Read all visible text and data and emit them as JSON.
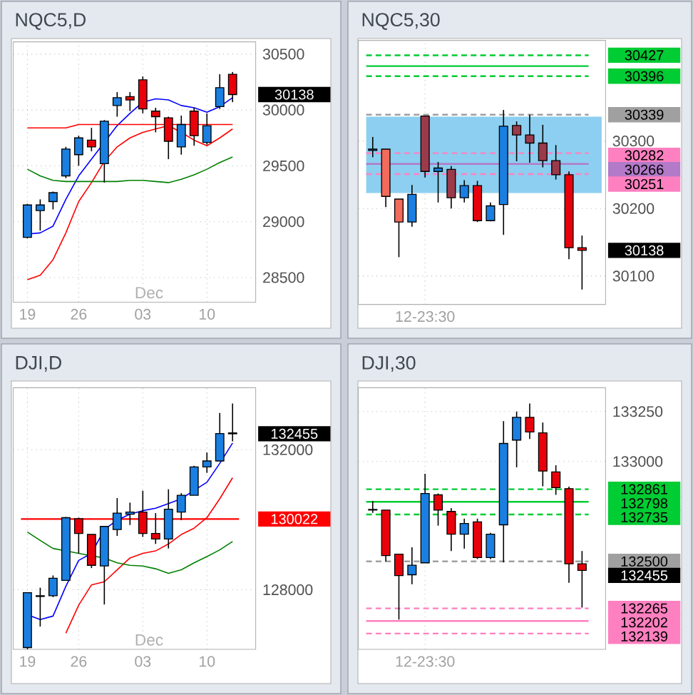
{
  "chart_data": [
    {
      "type": "candlestick",
      "title": "NQC5,D",
      "categories": [
        "19",
        null,
        null,
        null,
        "26",
        null,
        null,
        null,
        null,
        "03",
        null,
        null,
        null,
        null,
        "10",
        null,
        null
      ],
      "ohlc": [
        [
          28860,
          29160,
          28850,
          29150
        ],
        [
          29100,
          29200,
          28920,
          29150
        ],
        [
          29180,
          29270,
          29110,
          29260
        ],
        [
          29410,
          29670,
          29390,
          29650
        ],
        [
          29600,
          29770,
          29500,
          29750
        ],
        [
          29730,
          29840,
          29630,
          29670
        ],
        [
          29520,
          29910,
          29350,
          29900
        ],
        [
          30040,
          30160,
          29940,
          30110
        ],
        [
          30120,
          30160,
          29990,
          30090
        ],
        [
          30270,
          30300,
          29970,
          30010
        ],
        [
          29990,
          30020,
          29800,
          29940
        ],
        [
          29930,
          29940,
          29560,
          29720
        ],
        [
          29670,
          29950,
          29600,
          29870
        ],
        [
          29990,
          30020,
          29680,
          29770
        ],
        [
          29710,
          29970,
          29690,
          29860
        ],
        [
          30030,
          30320,
          30010,
          30200
        ],
        [
          30320,
          30340,
          30070,
          30138
        ]
      ],
      "colors": [
        "#1a7fe0",
        "#1a7fe0",
        "#1a7fe0",
        "#1a7fe0",
        "#1a7fe0",
        "#e8000b",
        "#1a7fe0",
        "#1a7fe0",
        "#e8000b",
        "#e8000b",
        "#e8000b",
        "#e8000b",
        "#1a7fe0",
        "#e8000b",
        "#1a7fe0",
        "#1a7fe0",
        "#e8000b"
      ],
      "series": [
        {
          "type": "line",
          "color": "#0000ff",
          "values": [
            28890,
            28900,
            28960,
            29200,
            29410,
            29560,
            29710,
            29860,
            29970,
            30070,
            30100,
            30090,
            30040,
            30020,
            29980,
            30030,
            30110
          ]
        },
        {
          "type": "line",
          "color": "#ff0000",
          "values": [
            28480,
            28520,
            28660,
            28900,
            29180,
            29350,
            29540,
            29670,
            29750,
            29800,
            29830,
            29860,
            29800,
            29730,
            29680,
            29750,
            29830
          ]
        },
        {
          "type": "line",
          "color": "#ff0000",
          "values": [
            29840,
            29840,
            29840,
            29840,
            29870,
            29870,
            29870,
            29870,
            29870,
            29870,
            29870,
            29870,
            29870,
            29870,
            29870,
            29870,
            29870
          ]
        },
        {
          "type": "line",
          "color": "#008000",
          "values": [
            29470,
            29410,
            29370,
            29360,
            29360,
            29360,
            29360,
            29360,
            29370,
            29370,
            29360,
            29350,
            29380,
            29420,
            29470,
            29530,
            29580
          ]
        }
      ],
      "ylim": [
        28280,
        30610
      ],
      "yticks": [
        28500,
        29000,
        29500,
        30000,
        30500
      ],
      "grid": true,
      "annotations": [
        "Dec",
        "30138"
      ]
    },
    {
      "type": "candlestick",
      "title": "NQC5,30",
      "categories": [
        null,
        null,
        null,
        null,
        "12-23:30",
        null,
        null,
        null,
        null,
        null,
        null,
        null,
        null,
        null,
        null,
        null,
        null
      ],
      "ohlc": [
        [
          30286,
          30306,
          30276,
          30288
        ],
        [
          30288,
          30288,
          30202,
          30218
        ],
        [
          30214,
          30214,
          30128,
          30180
        ],
        [
          30180,
          30235,
          30173,
          30221
        ],
        [
          30337,
          30337,
          30246,
          30255
        ],
        [
          30255,
          30269,
          30209,
          30260
        ],
        [
          30258,
          30263,
          30200,
          30216
        ],
        [
          30216,
          30242,
          30209,
          30234
        ],
        [
          30234,
          30241,
          30180,
          30182
        ],
        [
          30182,
          30209,
          30181,
          30204
        ],
        [
          30206,
          30346,
          30161,
          30322
        ],
        [
          30323,
          30329,
          30270,
          30309
        ],
        [
          30309,
          30339,
          30268,
          30297
        ],
        [
          30297,
          30324,
          30261,
          30271
        ],
        [
          30271,
          30294,
          30243,
          30250
        ],
        [
          30250,
          30255,
          30125,
          30142
        ],
        [
          30142,
          30160,
          30080,
          30138
        ]
      ],
      "colors": [
        "#1a7fe0",
        "#f26b5b",
        "#f26b5b",
        "#1a7fe0",
        "#9b3a4a",
        "#1a7fe0",
        "#9b3a4a",
        "#1a7fe0",
        "#e8000b",
        "#1a7fe0",
        "#1a7fe0",
        "#9b3a4a",
        "#9b3a4a",
        "#9b3a4a",
        "#9b3a4a",
        "#e8000b",
        "#e8000b"
      ],
      "ylim": [
        30058,
        30449
      ],
      "yticks": [
        30100,
        30200,
        30300
      ],
      "grid": true,
      "bands": [
        {
          "axis": "y",
          "from": 30223,
          "to": 30336,
          "color": "#8ccff0"
        }
      ],
      "ref_lines": [
        {
          "axis": "y",
          "value": 30427,
          "label": "30427",
          "color": "#00cc33",
          "line_style": "dashed"
        },
        {
          "axis": "y",
          "value": 30411,
          "label": null,
          "color": "#00cc33",
          "line_style": "solid"
        },
        {
          "axis": "y",
          "value": 30396,
          "label": "30396",
          "color": "#00cc33",
          "line_style": "dashed"
        },
        {
          "axis": "y",
          "value": 30339,
          "label": "30339",
          "color": "#a0a0a0",
          "line_style": "dashed"
        },
        {
          "axis": "y",
          "value": 30282,
          "label": "30282",
          "color": "#ff80c0",
          "line_style": "dashed"
        },
        {
          "axis": "y",
          "value": 30266,
          "label": "30266",
          "color": "#b27ac8",
          "line_style": "solid"
        },
        {
          "axis": "y",
          "value": 30251,
          "label": "30251",
          "color": "#ff80c0",
          "line_style": "dashed"
        }
      ],
      "annotations": [
        "30138"
      ]
    },
    {
      "type": "candlestick",
      "title": "DJI,D",
      "categories": [
        "19",
        null,
        null,
        null,
        "26",
        null,
        null,
        null,
        null,
        "03",
        null,
        null,
        null,
        null,
        "10",
        null,
        null
      ],
      "ohlc": [
        [
          126350,
          127920,
          126300,
          127920
        ],
        [
          127830,
          128060,
          126950,
          127810
        ],
        [
          127830,
          128410,
          127790,
          128330
        ],
        [
          128270,
          130080,
          128270,
          130060
        ],
        [
          130030,
          130060,
          129040,
          129610
        ],
        [
          129580,
          129580,
          128620,
          128700
        ],
        [
          128680,
          129810,
          127580,
          129810
        ],
        [
          129720,
          130620,
          129540,
          130190
        ],
        [
          130160,
          130490,
          129850,
          130220
        ],
        [
          130220,
          130830,
          129510,
          129610
        ],
        [
          129610,
          130190,
          129310,
          129450
        ],
        [
          129450,
          130870,
          129180,
          130300
        ],
        [
          130220,
          130760,
          129990,
          130700
        ],
        [
          130700,
          131540,
          130700,
          131510
        ],
        [
          131510,
          131920,
          131340,
          131680
        ],
        [
          131680,
          133050,
          131680,
          132460
        ],
        [
          132480,
          133320,
          132240,
          132455
        ]
      ],
      "colors": [
        "#1a7fe0",
        "#e8000b",
        "#1a7fe0",
        "#1a7fe0",
        "#e8000b",
        "#e8000b",
        "#1a7fe0",
        "#1a7fe0",
        "#1a7fe0",
        "#e8000b",
        "#e8000b",
        "#1a7fe0",
        "#1a7fe0",
        "#1a7fe0",
        "#1a7fe0",
        "#1a7fe0",
        "#e8000b"
      ],
      "series": [
        {
          "type": "line",
          "color": "#0000ff",
          "values": [
            127290,
            127150,
            127250,
            128100,
            128840,
            129040,
            129720,
            129990,
            130160,
            130260,
            130330,
            130460,
            130600,
            130840,
            131070,
            131610,
            132190
          ]
        },
        {
          "type": "line",
          "color": "#ff0000",
          "values": [
            null,
            null,
            null,
            126760,
            127560,
            128140,
            128230,
            128570,
            128910,
            129040,
            129110,
            129310,
            129580,
            129760,
            130060,
            130600,
            131200
          ]
        },
        {
          "type": "line",
          "color": "#008000",
          "values": [
            129650,
            129410,
            129180,
            129110,
            129040,
            128970,
            128910,
            128770,
            128700,
            128680,
            128600,
            128470,
            128570,
            128770,
            128950,
            129140,
            129380
          ]
        }
      ],
      "ylim": [
        126300,
        133770
      ],
      "yticks": [
        128000,
        132000
      ],
      "grid": true,
      "ref_lines": [
        {
          "axis": "y",
          "value": 130022,
          "label": "130022",
          "color": "#ff0000",
          "line_style": "solid"
        }
      ],
      "annotations": [
        "Dec",
        "132455"
      ]
    },
    {
      "type": "candlestick",
      "title": "DJI,30",
      "categories": [
        null,
        null,
        null,
        null,
        "12-23:30",
        null,
        null,
        null,
        null,
        null,
        null,
        null,
        null,
        null,
        null,
        null,
        null
      ],
      "ohlc": [
        [
          132757,
          132802,
          132743,
          132760
        ],
        [
          132757,
          132757,
          132500,
          132529
        ],
        [
          132536,
          132536,
          132209,
          132429
        ],
        [
          132433,
          132571,
          132386,
          132481
        ],
        [
          132493,
          132938,
          132493,
          132840
        ],
        [
          132833,
          132840,
          132679,
          132757
        ],
        [
          132750,
          132767,
          132552,
          132636
        ],
        [
          132636,
          132714,
          132564,
          132690
        ],
        [
          132698,
          132714,
          132512,
          132519
        ],
        [
          132519,
          132643,
          132512,
          132636
        ],
        [
          132683,
          133202,
          132495,
          133090
        ],
        [
          133107,
          133250,
          132971,
          133221
        ],
        [
          133221,
          133290,
          133112,
          133148
        ],
        [
          133143,
          133195,
          132876,
          132952
        ],
        [
          132948,
          132981,
          132833,
          132869
        ],
        [
          132864,
          132874,
          132393,
          132488
        ],
        [
          132488,
          132552,
          132269,
          132455
        ]
      ],
      "colors": [
        "#1a7fe0",
        "#e8000b",
        "#e8000b",
        "#1a7fe0",
        "#1a7fe0",
        "#e8000b",
        "#e8000b",
        "#1a7fe0",
        "#e8000b",
        "#1a7fe0",
        "#1a7fe0",
        "#1a7fe0",
        "#e8000b",
        "#e8000b",
        "#e8000b",
        "#e8000b",
        "#e8000b"
      ],
      "ylim": [
        132060,
        133369
      ],
      "yticks": [
        133000,
        133250
      ],
      "grid": true,
      "ref_lines": [
        {
          "axis": "y",
          "value": 132861,
          "label": "132861",
          "color": "#00cc33",
          "line_style": "dashed"
        },
        {
          "axis": "y",
          "value": 132798,
          "label": "132798",
          "color": "#00cc33",
          "line_style": "solid"
        },
        {
          "axis": "y",
          "value": 132735,
          "label": "132735",
          "color": "#00cc33",
          "line_style": "dashed"
        },
        {
          "axis": "y",
          "value": 132500,
          "label": "132500",
          "color": "#a0a0a0",
          "line_style": "dashed"
        },
        {
          "axis": "y",
          "value": 132265,
          "label": "132265",
          "color": "#ff80c0",
          "line_style": "dashed"
        },
        {
          "axis": "y",
          "value": 132202,
          "label": "132202",
          "color": "#ff80c0",
          "line_style": "solid"
        },
        {
          "axis": "y",
          "value": 132139,
          "label": "132139",
          "color": "#ff80c0",
          "line_style": "dashed"
        }
      ],
      "annotations": [
        "132455"
      ]
    }
  ]
}
